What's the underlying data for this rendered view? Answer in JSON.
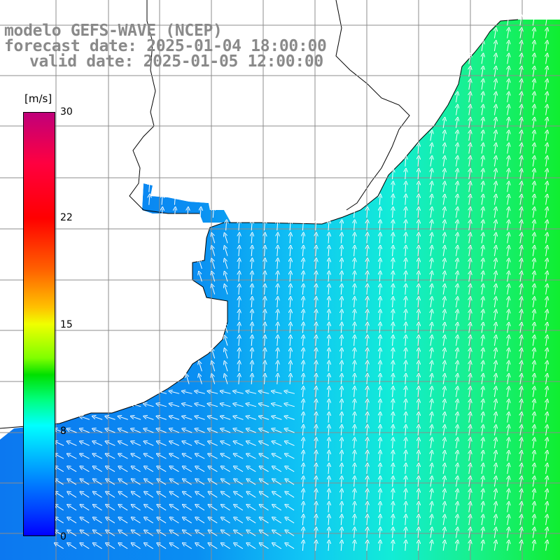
{
  "title": {
    "line1": "modelo GEFS-WAVE (NCEP)",
    "line2": "forecast date: 2025-01-04 18:00:00",
    "line3": "valid date: 2025-01-05 12:00:00"
  },
  "colorbar": {
    "unit": "[m/s]",
    "ticks": [
      "30",
      "22",
      "15",
      "8",
      "0"
    ],
    "min": 0,
    "max": 30,
    "colors": [
      "#0000ff",
      "#00a0ff",
      "#00ffff",
      "#00e000",
      "#f0ff00",
      "#ff6000",
      "#ff0000",
      "#c0007a"
    ]
  },
  "map": {
    "field": "wind speed",
    "units": "m/s",
    "land_color": "#ffffff",
    "coast_color": "#000000",
    "grid_color": "#8c8c8c",
    "wind_direction": "from south (arrows pointing north), turning to easterly near the southwest coast"
  }
}
